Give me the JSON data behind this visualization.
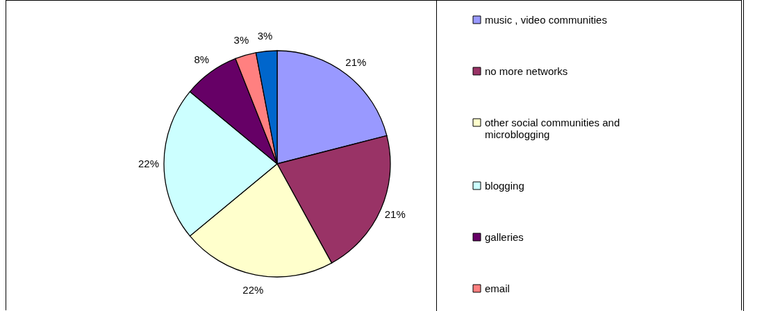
{
  "chart_data": {
    "type": "pie",
    "categories": [
      "music , video communities",
      "no more networks",
      "other social communities and microblogging",
      "blogging",
      "galleries",
      "email",
      null
    ],
    "values": [
      21,
      21,
      22,
      22,
      8,
      3,
      3
    ],
    "value_labels": [
      "21%",
      "21%",
      "22%",
      "22%",
      "8%",
      "3%",
      "3%"
    ],
    "colors": [
      "#9999ff",
      "#993366",
      "#ffffcc",
      "#ccffff",
      "#660066",
      "#ff8080",
      "#0066cc"
    ],
    "legend": "right"
  }
}
